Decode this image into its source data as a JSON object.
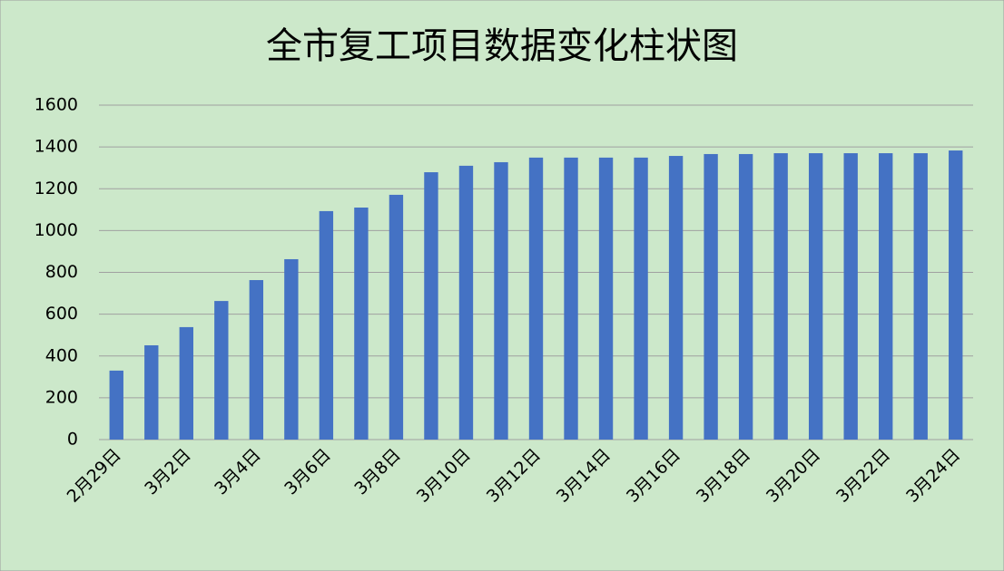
{
  "chart_data": {
    "type": "bar",
    "title": "全市复工项目数据变化柱状图",
    "categories": [
      "2月29日",
      null,
      "3月2日",
      null,
      "3月4日",
      null,
      "3月6日",
      null,
      "3月8日",
      null,
      "3月10日",
      null,
      "3月12日",
      null,
      "3月14日",
      null,
      "3月16日",
      null,
      "3月18日",
      null,
      "3月20日",
      null,
      "3月22日",
      null,
      "3月24日"
    ],
    "values": [
      330,
      451,
      538,
      663,
      763,
      863,
      1093,
      1110,
      1171,
      1279,
      1310,
      1327,
      1349,
      1349,
      1349,
      1349,
      1357,
      1366,
      1366,
      1370,
      1370,
      1370,
      1370,
      1370,
      1383
    ],
    "color": "#4472c4",
    "ylim": [
      0,
      1600
    ],
    "yticks": [
      0,
      200,
      400,
      600,
      800,
      1000,
      1200,
      1400,
      1600
    ],
    "grid": true
  }
}
